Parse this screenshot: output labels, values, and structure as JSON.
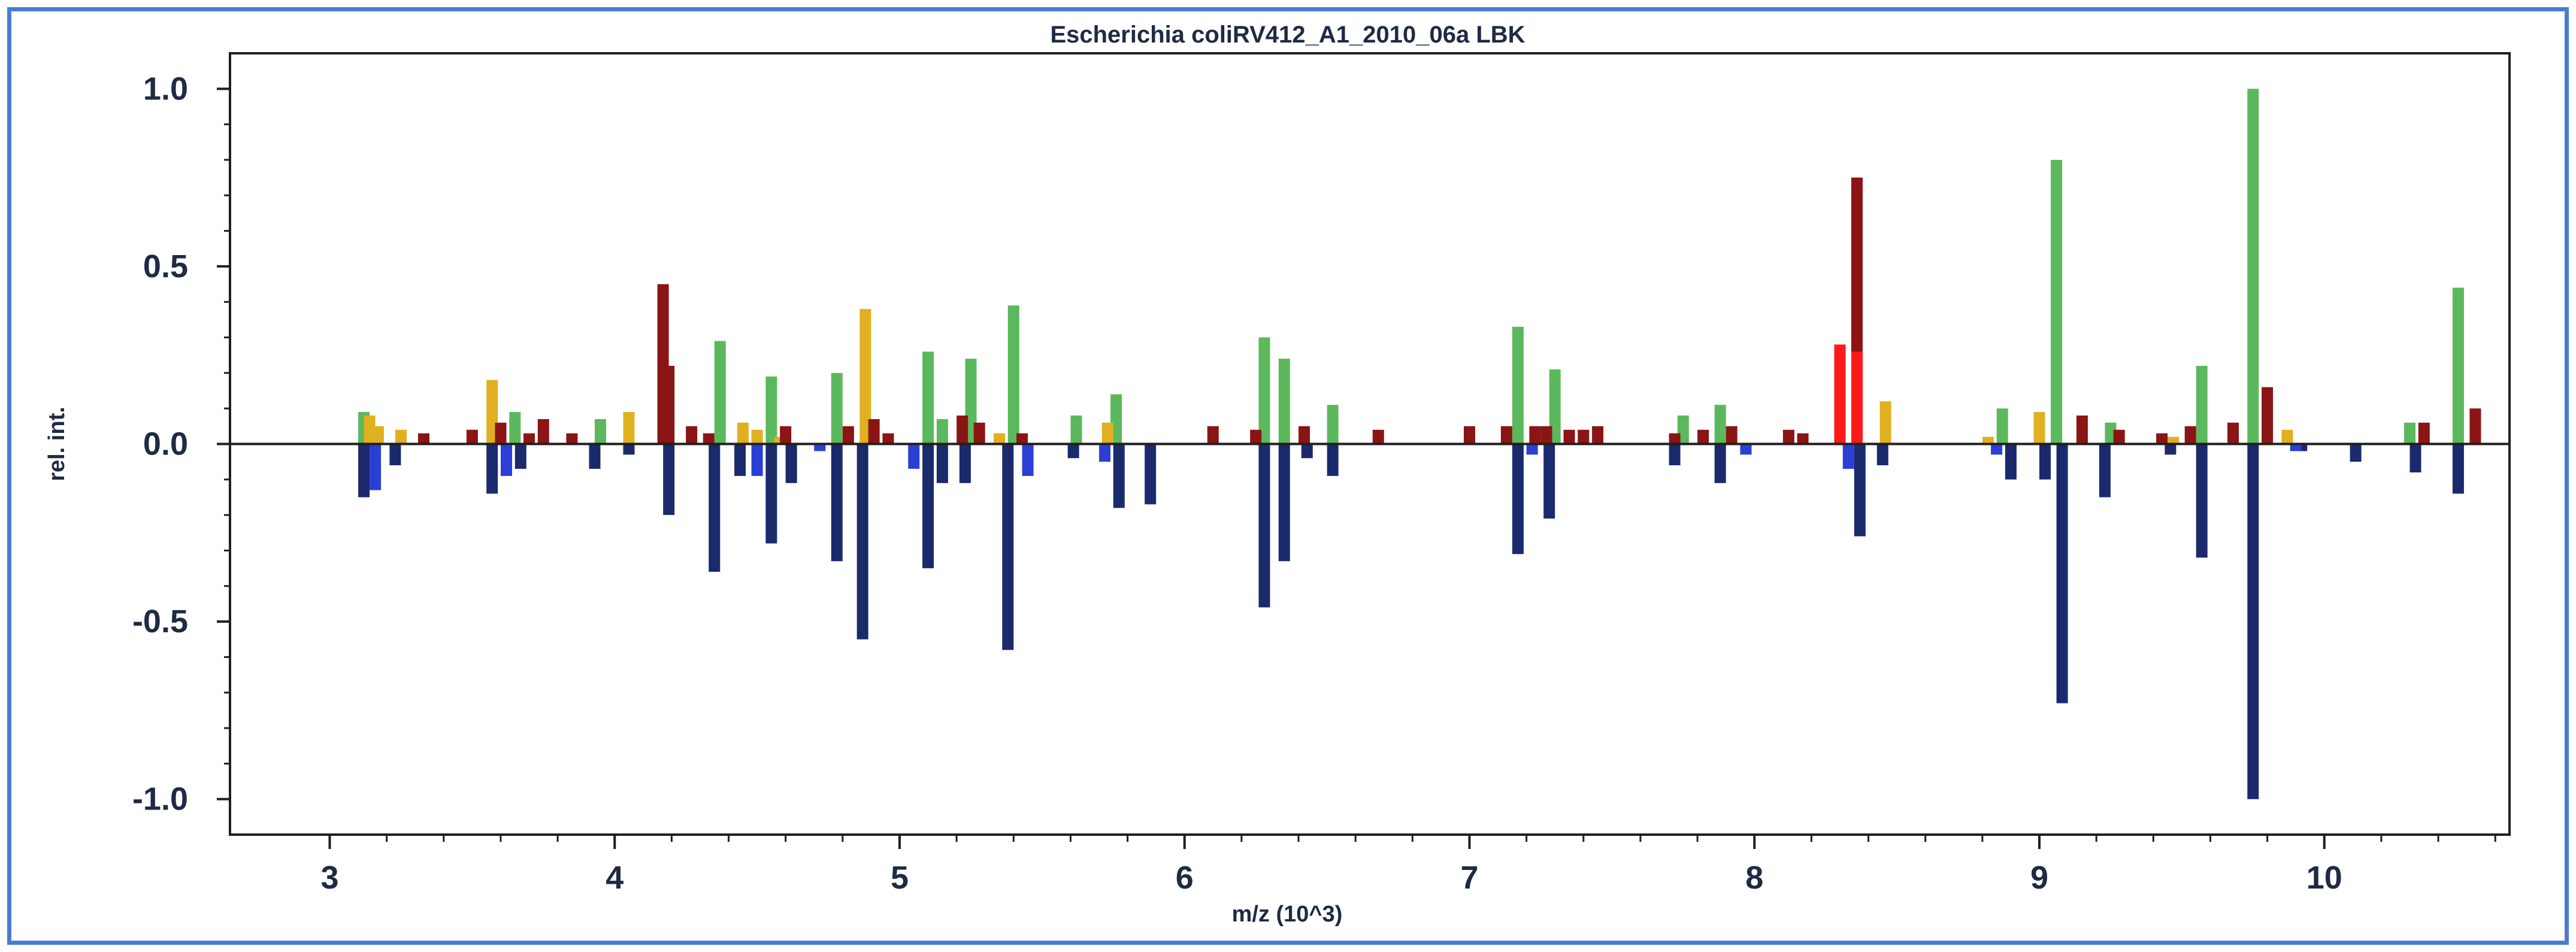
{
  "chart_data": {
    "type": "bar",
    "title": "Escherichia coliRV412_A1_2010_06a LBK",
    "xlabel": "m/z (10^3)",
    "ylabel": "rel. int.",
    "xlim": [
      2.65,
      10.65
    ],
    "ylim": [
      -1.1,
      1.1
    ],
    "x_ticks": [
      3,
      4,
      5,
      6,
      7,
      8,
      9,
      10
    ],
    "y_ticks": [
      1.0,
      0.5,
      0.0,
      -0.5,
      -1.0
    ],
    "y_tick_labels": [
      "1.0",
      "0.5",
      "0.0",
      "-0.5",
      "-1.0"
    ],
    "colors": {
      "green": "#5cb85c",
      "gold": "#e0b020",
      "darkred": "#8b1414",
      "red": "#ff1a1a",
      "navy": "#1a2a6c",
      "blue": "#2b3fd6"
    },
    "series": [
      {
        "name": "green",
        "color_key": "green",
        "points": [
          [
            3.12,
            0.09
          ],
          [
            3.65,
            0.09
          ],
          [
            3.95,
            0.07
          ],
          [
            4.37,
            0.29
          ],
          [
            4.55,
            0.19
          ],
          [
            4.78,
            0.2
          ],
          [
            5.1,
            0.26
          ],
          [
            5.15,
            0.07
          ],
          [
            5.25,
            0.24
          ],
          [
            5.4,
            0.39
          ],
          [
            5.62,
            0.08
          ],
          [
            5.76,
            0.14
          ],
          [
            6.28,
            0.3
          ],
          [
            6.35,
            0.24
          ],
          [
            6.52,
            0.11
          ],
          [
            7.17,
            0.33
          ],
          [
            7.3,
            0.21
          ],
          [
            7.75,
            0.08
          ],
          [
            7.88,
            0.11
          ],
          [
            8.87,
            0.1
          ],
          [
            9.06,
            0.8
          ],
          [
            9.25,
            0.06
          ],
          [
            9.57,
            0.22
          ],
          [
            9.75,
            1.0
          ],
          [
            10.3,
            0.06
          ],
          [
            10.47,
            0.44
          ]
        ]
      },
      {
        "name": "gold",
        "color_key": "gold",
        "points": [
          [
            3.14,
            0.08
          ],
          [
            3.17,
            0.05
          ],
          [
            3.25,
            0.04
          ],
          [
            3.57,
            0.18
          ],
          [
            4.05,
            0.09
          ],
          [
            4.45,
            0.06
          ],
          [
            4.5,
            0.04
          ],
          [
            4.58,
            0.02
          ],
          [
            4.88,
            0.38
          ],
          [
            5.28,
            0.03
          ],
          [
            5.35,
            0.03
          ],
          [
            5.73,
            0.06
          ],
          [
            8.46,
            0.12
          ],
          [
            8.82,
            0.02
          ],
          [
            9.0,
            0.09
          ],
          [
            9.47,
            0.02
          ],
          [
            9.87,
            0.04
          ]
        ]
      },
      {
        "name": "darkred",
        "color_key": "darkred",
        "points": [
          [
            3.33,
            0.03
          ],
          [
            3.5,
            0.04
          ],
          [
            3.6,
            0.06
          ],
          [
            3.7,
            0.03
          ],
          [
            3.75,
            0.07
          ],
          [
            3.85,
            0.03
          ],
          [
            4.17,
            0.45
          ],
          [
            4.19,
            0.22
          ],
          [
            4.27,
            0.05
          ],
          [
            4.33,
            0.03
          ],
          [
            4.6,
            0.05
          ],
          [
            4.82,
            0.05
          ],
          [
            4.91,
            0.07
          ],
          [
            4.96,
            0.03
          ],
          [
            5.22,
            0.08
          ],
          [
            5.28,
            0.06
          ],
          [
            5.43,
            0.03
          ],
          [
            6.1,
            0.05
          ],
          [
            6.25,
            0.04
          ],
          [
            6.42,
            0.05
          ],
          [
            6.68,
            0.04
          ],
          [
            7.0,
            0.05
          ],
          [
            7.13,
            0.05
          ],
          [
            7.23,
            0.05
          ],
          [
            7.27,
            0.05
          ],
          [
            7.35,
            0.04
          ],
          [
            7.4,
            0.04
          ],
          [
            7.45,
            0.05
          ],
          [
            7.72,
            0.03
          ],
          [
            7.82,
            0.04
          ],
          [
            7.92,
            0.05
          ],
          [
            8.12,
            0.04
          ],
          [
            8.17,
            0.03
          ],
          [
            8.36,
            0.75
          ],
          [
            9.15,
            0.08
          ],
          [
            9.28,
            0.04
          ],
          [
            9.43,
            0.03
          ],
          [
            9.53,
            0.05
          ],
          [
            9.68,
            0.06
          ],
          [
            9.8,
            0.16
          ],
          [
            10.35,
            0.06
          ],
          [
            10.53,
            0.1
          ]
        ]
      },
      {
        "name": "red",
        "color_key": "red",
        "points": [
          [
            8.3,
            0.28
          ],
          [
            8.36,
            0.26
          ]
        ]
      },
      {
        "name": "navy",
        "color_key": "navy",
        "points": [
          [
            3.12,
            -0.15
          ],
          [
            3.23,
            -0.06
          ],
          [
            3.57,
            -0.14
          ],
          [
            3.67,
            -0.07
          ],
          [
            3.93,
            -0.07
          ],
          [
            4.05,
            -0.03
          ],
          [
            4.19,
            -0.2
          ],
          [
            4.35,
            -0.36
          ],
          [
            4.44,
            -0.09
          ],
          [
            4.55,
            -0.28
          ],
          [
            4.62,
            -0.11
          ],
          [
            4.78,
            -0.33
          ],
          [
            4.87,
            -0.55
          ],
          [
            5.1,
            -0.35
          ],
          [
            5.15,
            -0.11
          ],
          [
            5.23,
            -0.11
          ],
          [
            5.38,
            -0.58
          ],
          [
            5.61,
            -0.04
          ],
          [
            5.77,
            -0.18
          ],
          [
            5.88,
            -0.17
          ],
          [
            6.28,
            -0.46
          ],
          [
            6.35,
            -0.33
          ],
          [
            6.43,
            -0.04
          ],
          [
            6.52,
            -0.09
          ],
          [
            7.17,
            -0.31
          ],
          [
            7.28,
            -0.21
          ],
          [
            7.72,
            -0.06
          ],
          [
            7.88,
            -0.11
          ],
          [
            8.37,
            -0.26
          ],
          [
            8.45,
            -0.06
          ],
          [
            8.9,
            -0.1
          ],
          [
            9.02,
            -0.1
          ],
          [
            9.08,
            -0.73
          ],
          [
            9.23,
            -0.15
          ],
          [
            9.46,
            -0.03
          ],
          [
            9.57,
            -0.32
          ],
          [
            9.75,
            -1.0
          ],
          [
            9.92,
            -0.02
          ],
          [
            10.11,
            -0.05
          ],
          [
            10.32,
            -0.08
          ],
          [
            10.47,
            -0.14
          ]
        ]
      },
      {
        "name": "blue",
        "color_key": "blue",
        "points": [
          [
            3.16,
            -0.13
          ],
          [
            3.62,
            -0.09
          ],
          [
            4.5,
            -0.09
          ],
          [
            4.72,
            -0.02
          ],
          [
            5.05,
            -0.07
          ],
          [
            5.45,
            -0.09
          ],
          [
            5.72,
            -0.05
          ],
          [
            7.22,
            -0.03
          ],
          [
            7.97,
            -0.03
          ],
          [
            8.33,
            -0.07
          ],
          [
            8.85,
            -0.03
          ],
          [
            9.9,
            -0.02
          ]
        ]
      }
    ]
  }
}
